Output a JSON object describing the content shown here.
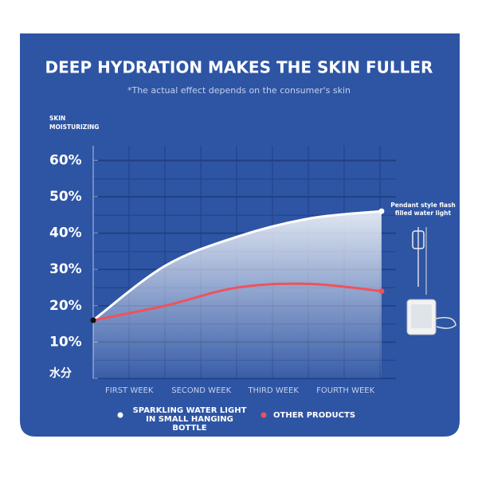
{
  "chart_data": {
    "type": "line",
    "title": "DEEP HYDRATION MAKES THE SKIN FULLER",
    "subtitle": "*The actual effect depends on the consumer's skin",
    "y_label": "SKIN MOISTURIZING",
    "annotation": "Pendant style flash filled water light",
    "xlim": [
      0,
      4.2
    ],
    "xticks": [
      {
        "value": 0.5,
        "label": "FIRST WEEK"
      },
      {
        "value": 1.5,
        "label": "SECOND WEEK"
      },
      {
        "value": 2.5,
        "label": "THIRD WEEK"
      },
      {
        "value": 3.5,
        "label": "FOURTH WEEK"
      }
    ],
    "ylim": [
      0,
      64
    ],
    "yticks": [
      {
        "value": 0,
        "label": "水分"
      },
      {
        "value": 10,
        "label": "10%"
      },
      {
        "value": 20,
        "label": "20%"
      },
      {
        "value": 30,
        "label": "30%"
      },
      {
        "value": 40,
        "label": "40%"
      },
      {
        "value": 50,
        "label": "50%"
      },
      {
        "value": 60,
        "label": "60%"
      }
    ],
    "grid": true,
    "x": [
      0,
      1,
      2,
      3,
      4
    ],
    "series": [
      {
        "name": "SPARKLING WATER LIGHT IN SMALL HANGING BOTTLE",
        "color": "#ffffff",
        "values": [
          16,
          31,
          39,
          44,
          46
        ]
      },
      {
        "name": "OTHER PRODUCTS",
        "color": "#f0525a",
        "values": [
          16,
          20,
          25,
          26,
          24
        ]
      }
    ]
  }
}
